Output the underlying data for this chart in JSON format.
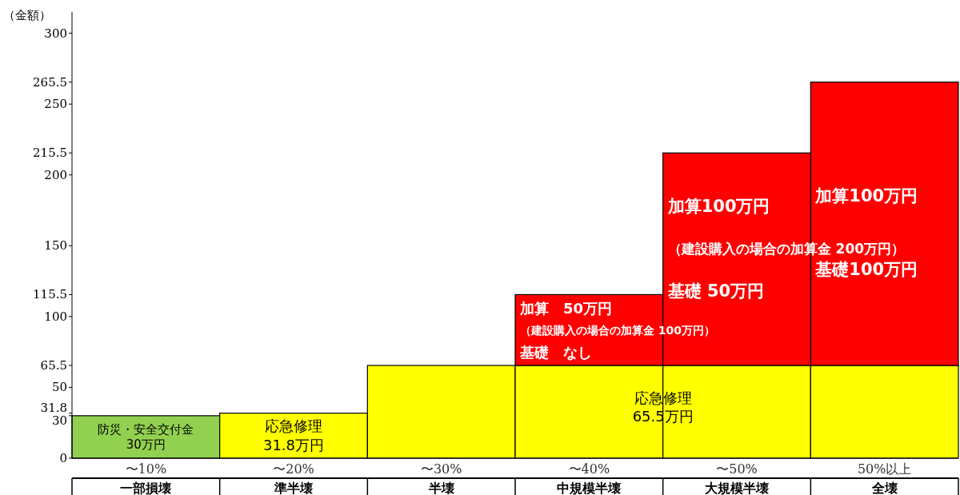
{
  "chart_data": {
    "type": "bar",
    "stacked": true,
    "ylabel": "（金額）",
    "categories": [
      "〜10%",
      "〜20%",
      "〜30%",
      "〜40%",
      "〜50%",
      "50%以上"
    ],
    "series": [
      {
        "color": "#92d050",
        "values": [
          30,
          null,
          null,
          null,
          null,
          null
        ]
      },
      {
        "color": "#ffff00",
        "values": [
          null,
          31.8,
          65.5,
          65.5,
          65.5,
          65.5
        ]
      },
      {
        "color": "#ff0000",
        "values": [
          null,
          null,
          null,
          50,
          150,
          200
        ]
      }
    ],
    "ylim": [
      0,
      315
    ],
    "yticks": [
      0,
      30,
      31.8,
      50,
      65.5,
      100,
      115.5,
      150,
      200,
      215.5,
      250,
      265.5,
      300
    ],
    "annotations": [
      "防災・安全交付金\n30万円",
      "応急修理\n31.8万円",
      "応急修理\n65.5万円",
      "加算　50万円",
      "（建設購入の場合の加算金 100万円）",
      "基礎　なし",
      "加算100万円",
      "（建設購入の場合の加算金 200万円）",
      "基礎 50万円",
      "加算100万円",
      "基礎100万円",
      "一部損壊",
      "準半壊",
      "半壊",
      "中規模半壊",
      "大規模半壊",
      "全壊"
    ],
    "grid": false
  }
}
